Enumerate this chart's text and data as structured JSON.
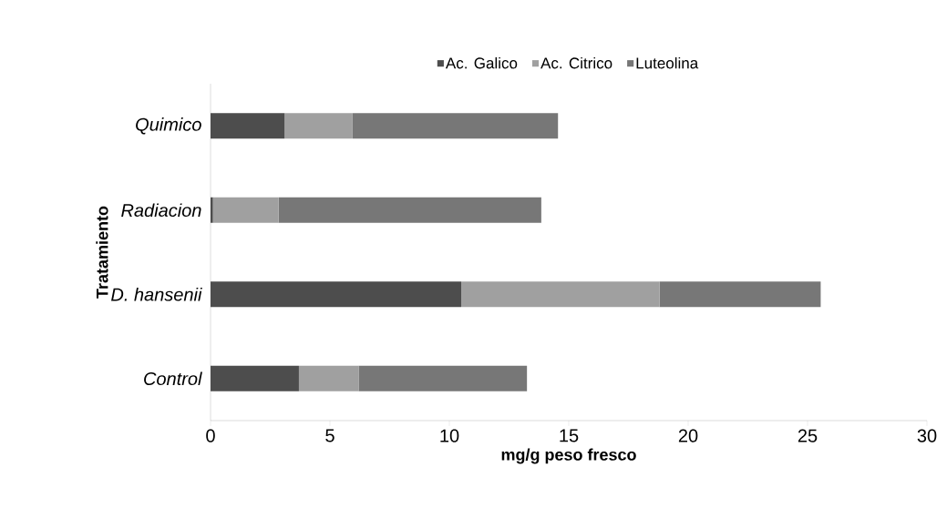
{
  "chart_data": {
    "type": "bar",
    "orientation": "horizontal",
    "stacked": true,
    "categories": [
      "Quimico",
      "Radiacion",
      "D. hansenii",
      "Control"
    ],
    "series": [
      {
        "name": "Ac. Galico",
        "color": "#4d4d4d",
        "values": [
          3.1,
          0.1,
          10.5,
          3.7
        ]
      },
      {
        "name": "Ac. Citrico",
        "color": "#a0a0a0",
        "values": [
          2.85,
          2.75,
          8.3,
          2.5
        ]
      },
      {
        "name": "Luteolina",
        "color": "#777777",
        "values": [
          8.6,
          11.0,
          6.75,
          7.05
        ]
      }
    ],
    "xlabel": "mg/g peso fresco",
    "ylabel": "Tratamiento",
    "xlim": [
      0,
      30
    ],
    "xticks": [
      0,
      5,
      10,
      15,
      20,
      25,
      30
    ],
    "legend": "top",
    "grid": false
  }
}
